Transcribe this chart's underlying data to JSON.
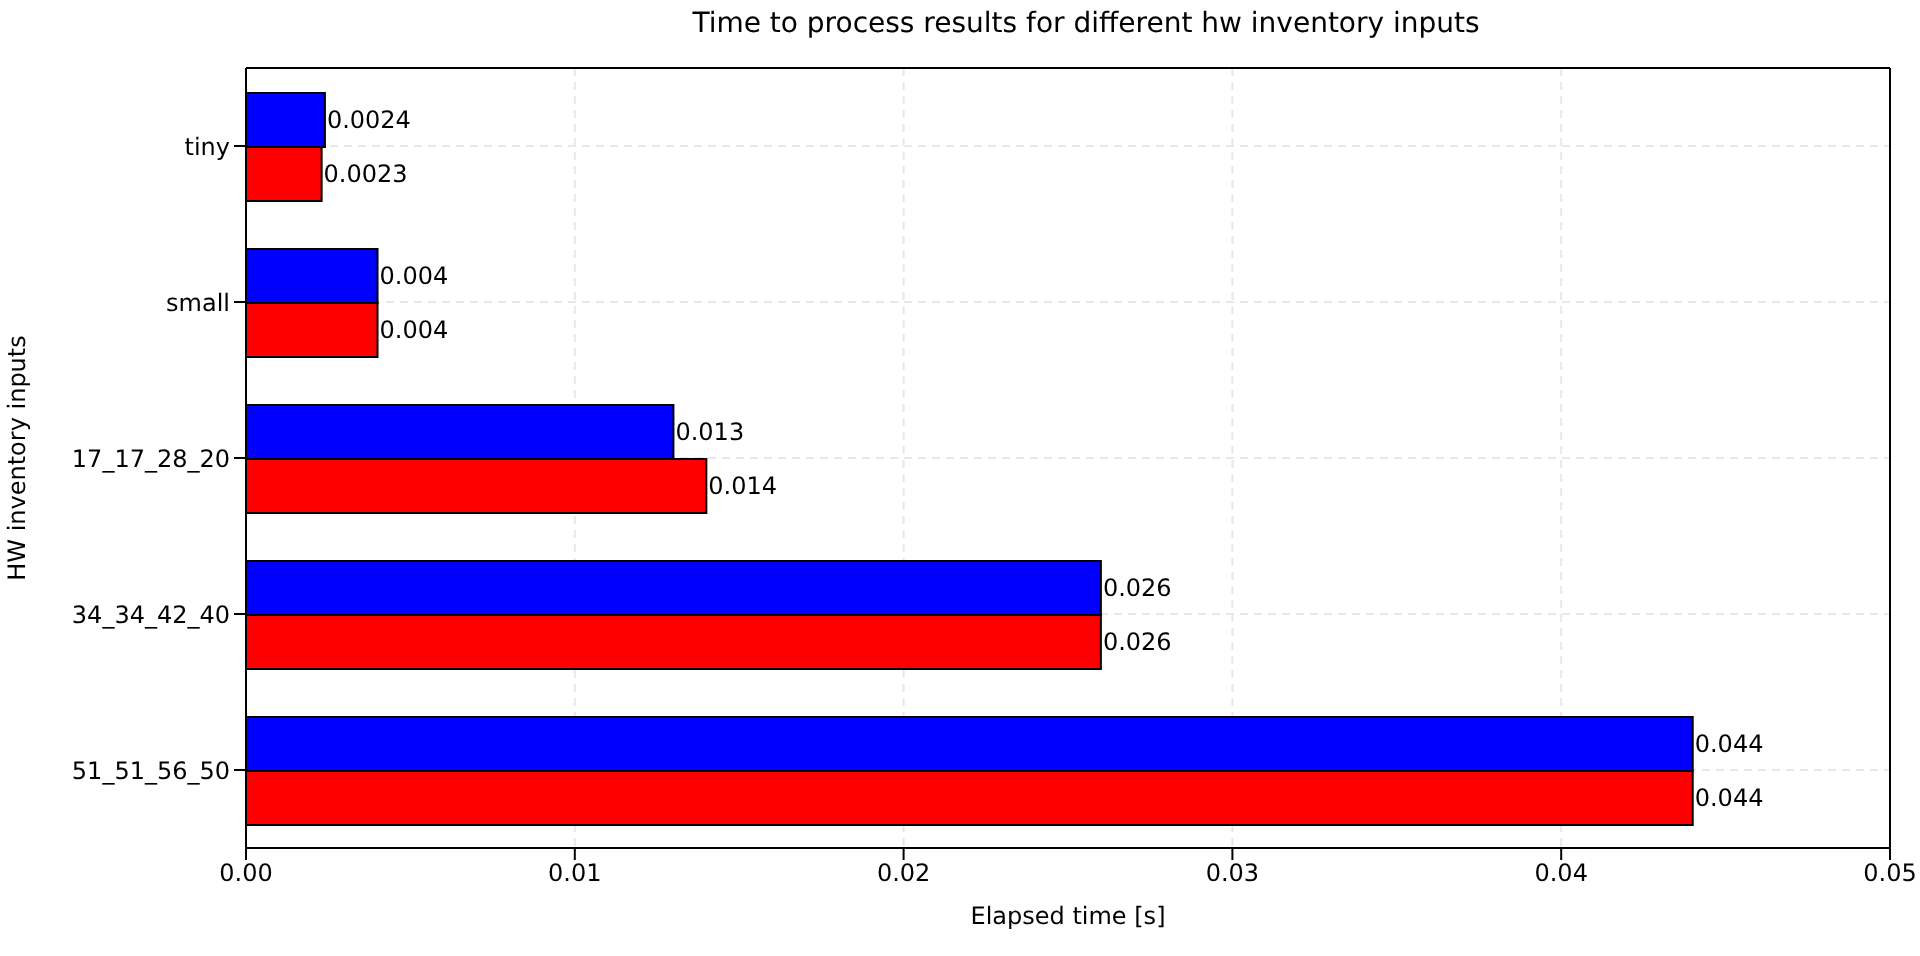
{
  "chart_data": {
    "type": "bar",
    "orientation": "horizontal",
    "title": "Time to process results for different hw inventory inputs",
    "xlabel": "Elapsed time [s]",
    "ylabel": "HW inventory inputs",
    "categories": [
      "tiny",
      "small",
      "17_17_28_20",
      "34_34_42_40",
      "51_51_56_50"
    ],
    "series": [
      {
        "color": "#0000ff",
        "values": [
          0.0024,
          0.004,
          0.013,
          0.026,
          0.044
        ]
      },
      {
        "color": "#ff0000",
        "values": [
          0.0023,
          0.004,
          0.014,
          0.026,
          0.044
        ]
      }
    ],
    "xlim": [
      0,
      0.05
    ],
    "xticks": [
      {
        "value": 0,
        "label": "0.00"
      },
      0.01,
      0.02,
      0.03,
      0.04,
      0.05
    ],
    "grid": true,
    "data_labels": true
  }
}
